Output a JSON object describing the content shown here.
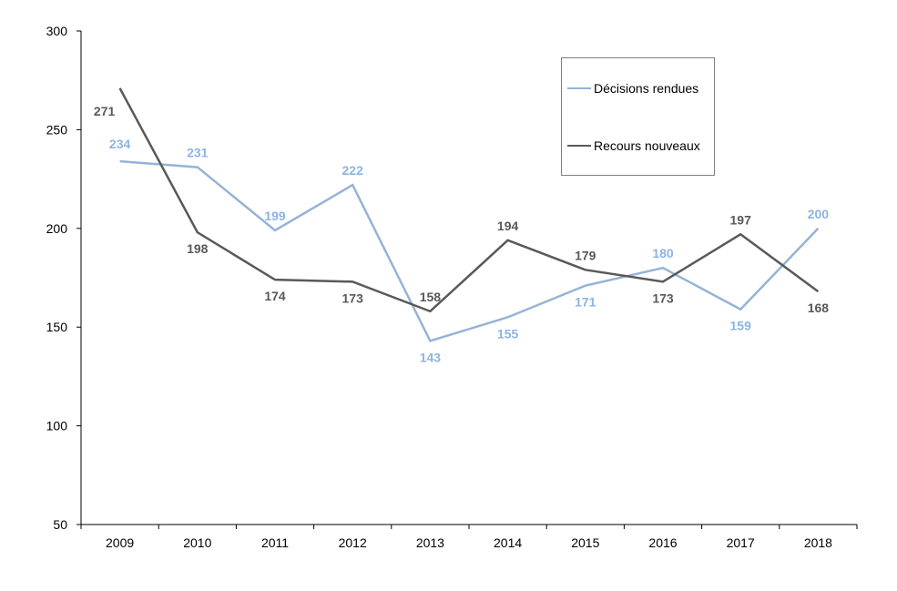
{
  "chart_data": {
    "type": "line",
    "categories": [
      "2009",
      "2010",
      "2011",
      "2012",
      "2013",
      "2014",
      "2015",
      "2016",
      "2017",
      "2018"
    ],
    "series": [
      {
        "name": "Décisions rendues",
        "values": [
          234,
          231,
          199,
          222,
          143,
          155,
          171,
          180,
          159,
          200
        ],
        "color": "#95b3d7",
        "label_color": "#8db4e2"
      },
      {
        "name": "Recours nouveaux",
        "values": [
          271,
          198,
          174,
          173,
          158,
          194,
          179,
          173,
          197,
          168
        ],
        "color": "#595959",
        "label_color": "#595959"
      }
    ],
    "y_ticks": [
      "50",
      "100",
      "150",
      "200",
      "250",
      "300"
    ],
    "ylim": [
      50,
      300
    ],
    "title": "",
    "xlabel": "",
    "ylabel": "",
    "grid": false,
    "legend_position": "top-right"
  }
}
